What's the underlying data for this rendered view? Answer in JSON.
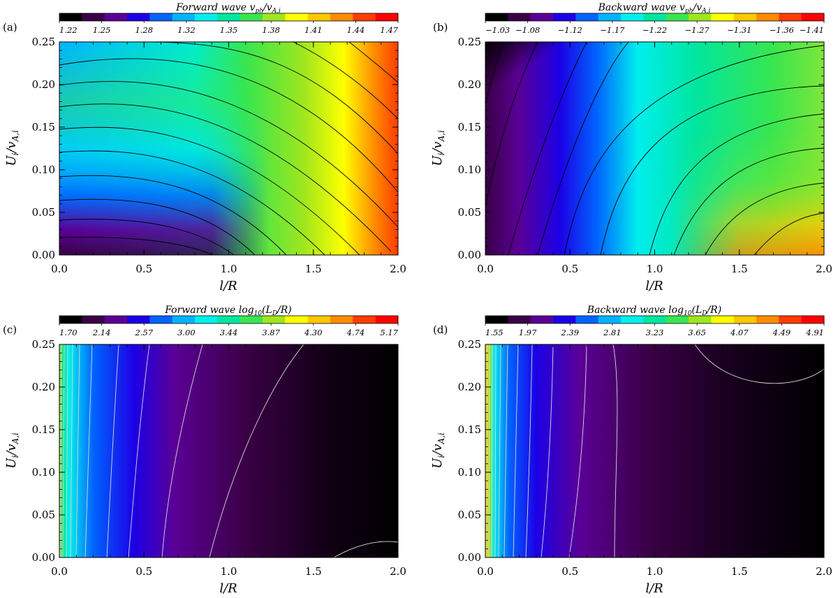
{
  "chart_data": [
    {
      "panel": "(a)",
      "type": "heatmap",
      "title": "Forward wave v_ph / v_A,i",
      "title_main": "Forward wave ",
      "title_math": "v",
      "title_sub": "ph",
      "title_mid": "/v",
      "title_sub2": "A,i",
      "xlabel": "l/R",
      "ylabel": "U_i/v_A,i",
      "ylabel_main": "U",
      "ylabel_sub": "i",
      "ylabel_mid": "/v",
      "ylabel_sub2": "A,i",
      "xlim": [
        0.0,
        2.0
      ],
      "ylim": [
        0.0,
        0.25
      ],
      "x_ticks": [
        "0.0",
        "0.5",
        "1.0",
        "1.5",
        "2.0"
      ],
      "y_ticks": [
        "0.00",
        "0.05",
        "0.10",
        "0.15",
        "0.20",
        "0.25"
      ],
      "colorbar_ticks": [
        "1.22",
        "1.25",
        "1.28",
        "1.32",
        "1.35",
        "1.38",
        "1.41",
        "1.44",
        "1.47"
      ],
      "colorbar_range": [
        1.22,
        1.47
      ],
      "contour_color": "#000000"
    },
    {
      "panel": "(b)",
      "type": "heatmap",
      "title": "Backward wave v_ph / v_A,i",
      "title_main": "Backward wave ",
      "title_math": "v",
      "title_sub": "ph",
      "title_mid": "/v",
      "title_sub2": "A,i",
      "xlabel": "l/R",
      "ylabel": "U_i/v_A,i",
      "ylabel_main": "U",
      "ylabel_sub": "i",
      "ylabel_mid": "/v",
      "ylabel_sub2": "A,i",
      "xlim": [
        0.0,
        2.0
      ],
      "ylim": [
        0.0,
        0.25
      ],
      "x_ticks": [
        "0.0",
        "0.5",
        "1.0",
        "1.5",
        "2.0"
      ],
      "y_ticks": [
        "0.00",
        "0.05",
        "0.10",
        "0.15",
        "0.20",
        "0.25"
      ],
      "colorbar_ticks": [
        "−1.03",
        "−1.08",
        "−1.12",
        "−1.17",
        "−1.22",
        "−1.27",
        "−1.31",
        "−1.36",
        "−1.41"
      ],
      "colorbar_range": [
        -1.03,
        -1.41
      ],
      "contour_color": "#000000"
    },
    {
      "panel": "(c)",
      "type": "heatmap",
      "title": "Forward wave log10(L_D / R)",
      "title_main": "Forward wave log",
      "title_sub": "10",
      "title_mid": "(L",
      "title_sub2": "D",
      "title_end": "/R)",
      "xlabel": "l/R",
      "ylabel": "U_i/v_A,i",
      "ylabel_main": "U",
      "ylabel_sub": "i",
      "ylabel_mid": "/v",
      "ylabel_sub2": "A,i",
      "xlim": [
        0.0,
        2.0
      ],
      "ylim": [
        0.0,
        0.25
      ],
      "x_ticks": [
        "0.0",
        "0.5",
        "1.0",
        "1.5",
        "2.0"
      ],
      "y_ticks": [
        "0.00",
        "0.05",
        "0.10",
        "0.15",
        "0.20",
        "0.25"
      ],
      "colorbar_ticks": [
        "1.70",
        "2.14",
        "2.57",
        "3.00",
        "3.44",
        "3.87",
        "4.30",
        "4.74",
        "5.17"
      ],
      "colorbar_range": [
        1.7,
        5.17
      ],
      "contour_color": "#d8d8d8"
    },
    {
      "panel": "(d)",
      "type": "heatmap",
      "title": "Backward wave log10(L_D / R)",
      "title_main": "Backward wave log",
      "title_sub": "10",
      "title_mid": "(L",
      "title_sub2": "D",
      "title_end": "/R)",
      "xlabel": "l/R",
      "ylabel": "U_i/v_A,i",
      "ylabel_main": "U",
      "ylabel_sub": "i",
      "ylabel_mid": "/v",
      "ylabel_sub2": "A,i",
      "xlim": [
        0.0,
        2.0
      ],
      "ylim": [
        0.0,
        0.25
      ],
      "x_ticks": [
        "0.0",
        "0.5",
        "1.0",
        "1.5",
        "2.0"
      ],
      "y_ticks": [
        "0.00",
        "0.05",
        "0.10",
        "0.15",
        "0.20",
        "0.25"
      ],
      "colorbar_ticks": [
        "1.55",
        "1.97",
        "2.39",
        "2.81",
        "3.23",
        "3.65",
        "4.07",
        "4.49",
        "4.91"
      ],
      "colorbar_range": [
        1.55,
        4.91
      ],
      "contour_color": "#d8d8d8"
    }
  ],
  "colormap": [
    "#000000",
    "#3a0046",
    "#5a0096",
    "#1c00e6",
    "#0064ff",
    "#00b4ff",
    "#00eeee",
    "#00e6a0",
    "#38e650",
    "#9ee61e",
    "#ffff00",
    "#ffc800",
    "#ff8c00",
    "#ff3c00",
    "#ff0000"
  ]
}
